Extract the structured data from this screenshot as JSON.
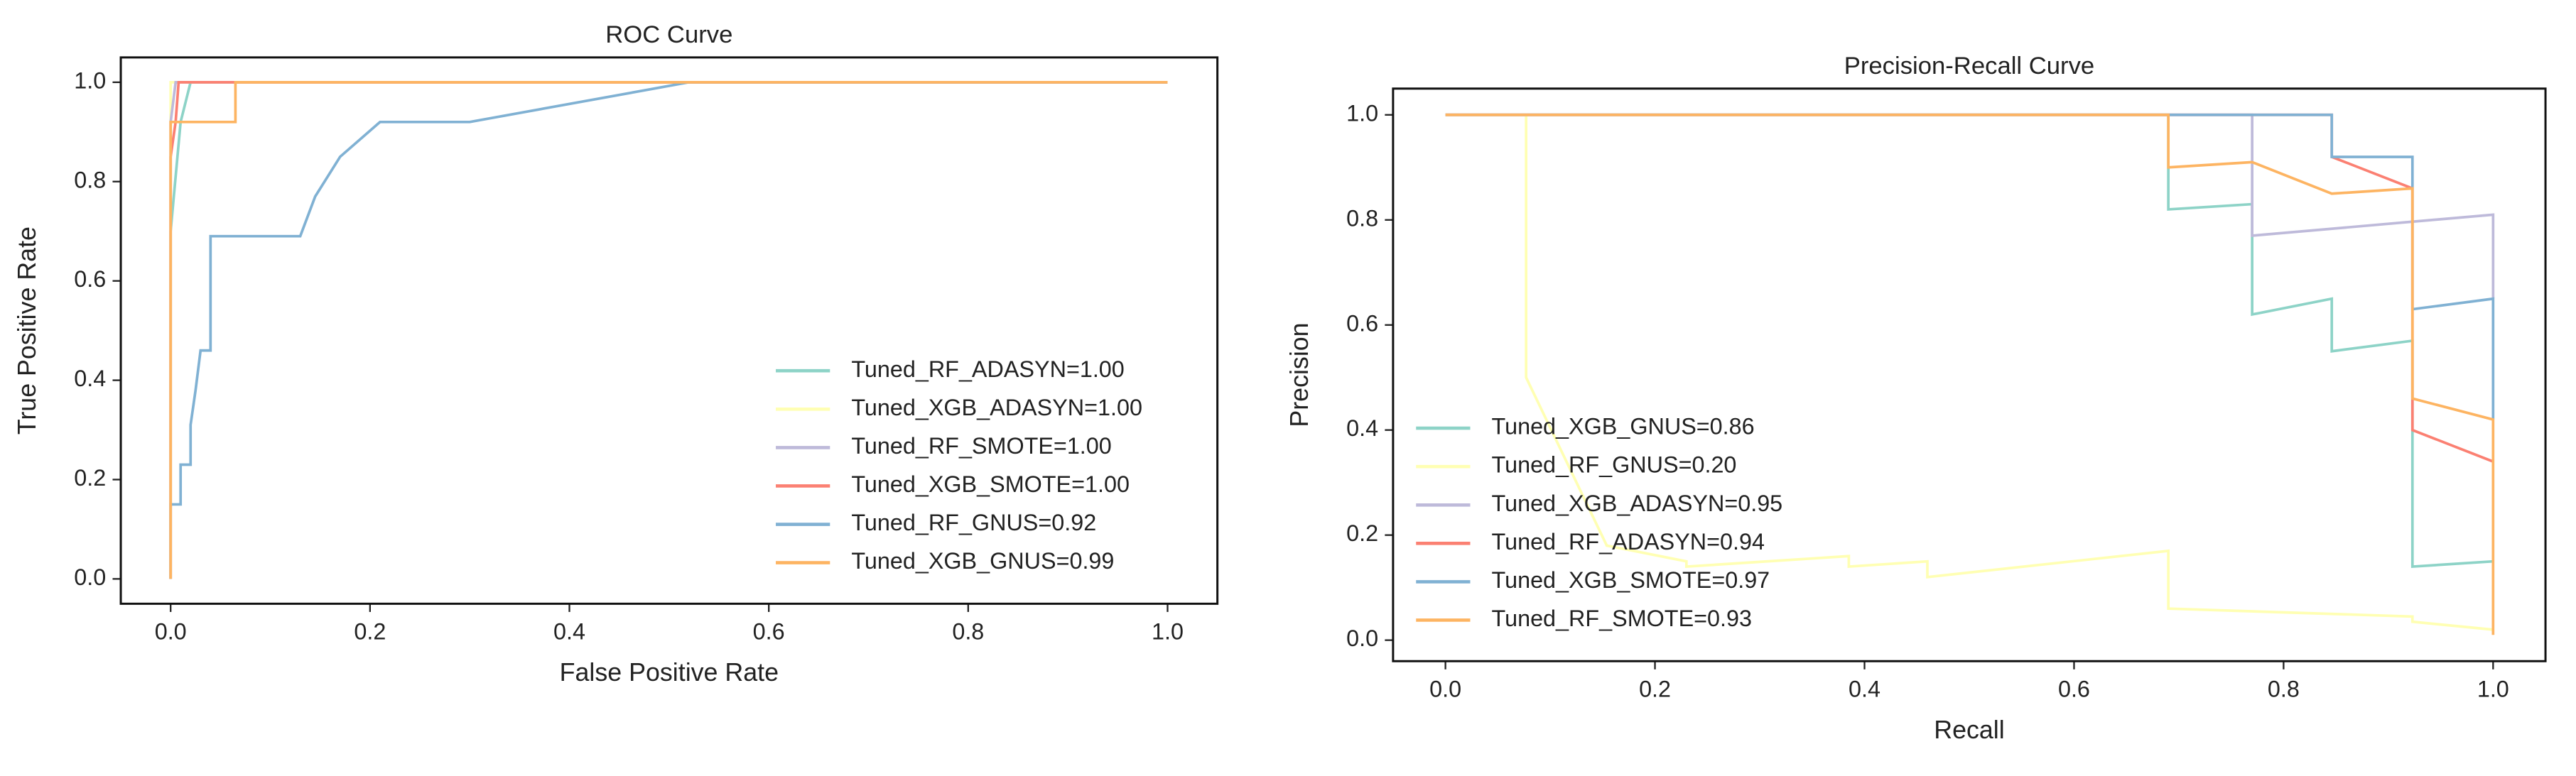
{
  "chart_data": [
    {
      "type": "line",
      "title": "ROC Curve",
      "x_label": "False Positive Rate",
      "y_label": "True Positive Rate",
      "xlim": [
        -0.05,
        1.05
      ],
      "ylim": [
        -0.05,
        1.05
      ],
      "xticks": [
        {
          "value": 0,
          "label": "0.0"
        },
        0.2,
        0.4,
        0.6,
        0.8,
        {
          "value": 1,
          "label": "1.0"
        }
      ],
      "yticks": [
        {
          "value": 0,
          "label": "0.0"
        },
        0.2,
        0.4,
        0.6,
        0.8,
        {
          "value": 1,
          "label": "1.0"
        }
      ],
      "legend": "lower right",
      "series": [
        {
          "name": "Tuned_RF_ADASYN=1.00",
          "color": "#8dd3c7",
          "x": [
            0,
            0,
            0.01,
            0.02,
            1
          ],
          "values": [
            0,
            0.7,
            0.92,
            1,
            1
          ]
        },
        {
          "name": "Tuned_XGB_ADASYN=1.00",
          "color": "#ffffb3",
          "x": [
            0,
            0,
            1
          ],
          "values": [
            0,
            1,
            1
          ]
        },
        {
          "name": "Tuned_RF_SMOTE=1.00",
          "color": "#bebada",
          "x": [
            0,
            0,
            0.005,
            1
          ],
          "values": [
            0,
            0.92,
            1,
            1
          ]
        },
        {
          "name": "Tuned_XGB_SMOTE=1.00",
          "color": "#fb8072",
          "x": [
            0,
            0,
            0.005,
            0.008,
            1
          ],
          "values": [
            0,
            0.85,
            0.92,
            1,
            1
          ]
        },
        {
          "name": "Tuned_RF_GNUS=0.92",
          "color": "#80b1d3",
          "x": [
            0,
            0,
            0.01,
            0.01,
            0.02,
            0.02,
            0.025,
            0.03,
            0.04,
            0.04,
            0.13,
            0.145,
            0.17,
            0.21,
            0.3,
            0.52,
            1
          ],
          "values": [
            0,
            0.15,
            0.15,
            0.23,
            0.23,
            0.31,
            0.38,
            0.46,
            0.46,
            0.69,
            0.69,
            0.77,
            0.85,
            0.92,
            0.92,
            1,
            1
          ]
        },
        {
          "name": "Tuned_XGB_GNUS=0.99",
          "color": "#fdb462",
          "x": [
            0,
            0,
            0.065,
            0.065,
            1
          ],
          "values": [
            0,
            0.92,
            0.92,
            1,
            1
          ]
        }
      ]
    },
    {
      "type": "line",
      "title": "Precision-Recall Curve",
      "x_label": "Recall",
      "y_label": "Precision",
      "xlim": [
        -0.05,
        1.05
      ],
      "ylim": [
        -0.04,
        1.05
      ],
      "xticks": [
        {
          "value": 0,
          "label": "0.0"
        },
        0.2,
        0.4,
        0.6,
        0.8,
        {
          "value": 1,
          "label": "1.0"
        }
      ],
      "yticks": [
        {
          "value": 0,
          "label": "0.0"
        },
        0.2,
        0.4,
        0.6,
        0.8,
        {
          "value": 1,
          "label": "1.0"
        }
      ],
      "legend": "lower left",
      "series": [
        {
          "name": "Tuned_XGB_GNUS=0.86",
          "color": "#8dd3c7",
          "x": [
            0,
            0.69,
            0.69,
            0.77,
            0.77,
            0.846,
            0.846,
            0.923,
            0.923,
            1
          ],
          "values": [
            1,
            1,
            0.82,
            0.83,
            0.62,
            0.65,
            0.55,
            0.57,
            0.14,
            0.15
          ]
        },
        {
          "name": "Tuned_RF_GNUS=0.20",
          "color": "#ffffb3",
          "x": [
            0,
            0.077,
            0.077,
            0.154,
            0.23,
            0.23,
            0.385,
            0.385,
            0.46,
            0.46,
            0.69,
            0.69,
            0.923,
            0.923,
            1
          ],
          "values": [
            1,
            1,
            0.5,
            0.18,
            0.15,
            0.14,
            0.16,
            0.14,
            0.15,
            0.12,
            0.17,
            0.06,
            0.045,
            0.035,
            0.02
          ]
        },
        {
          "name": "Tuned_XGB_ADASYN=0.95",
          "color": "#bebada",
          "x": [
            0,
            0.77,
            0.77,
            1,
            1
          ],
          "values": [
            1,
            1,
            0.77,
            0.81,
            0.65
          ]
        },
        {
          "name": "Tuned_RF_ADASYN=0.94",
          "color": "#fb8072",
          "x": [
            0,
            0.846,
            0.846,
            0.923,
            0.923,
            1
          ],
          "values": [
            1,
            1,
            0.92,
            0.86,
            0.4,
            0.34
          ]
        },
        {
          "name": "Tuned_XGB_SMOTE=0.97",
          "color": "#80b1d3",
          "x": [
            0,
            0.846,
            0.846,
            0.923,
            0.923,
            1,
            1
          ],
          "values": [
            1,
            1,
            0.92,
            0.92,
            0.63,
            0.65,
            0.42
          ]
        },
        {
          "name": "Tuned_RF_SMOTE=0.93",
          "color": "#fdb462",
          "x": [
            0,
            0.69,
            0.69,
            0.77,
            0.846,
            0.923,
            0.923,
            1,
            1
          ],
          "values": [
            1,
            1,
            0.9,
            0.91,
            0.85,
            0.86,
            0.46,
            0.42,
            0.01
          ]
        }
      ]
    }
  ]
}
